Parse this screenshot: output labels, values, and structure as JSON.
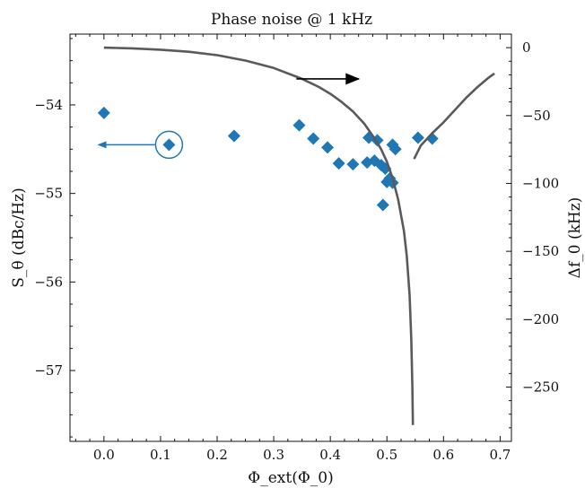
{
  "chart_data": {
    "type": "scatter",
    "title": "Phase noise @ 1 kHz",
    "xlabel": "Φ_ext(Φ_0)",
    "ylabel_left": "S_θ (dBc/Hz)",
    "ylabel_right": "Δf_0 (kHz)",
    "xlim": [
      -0.06,
      0.72
    ],
    "ylim_left": [
      -57.8,
      -53.2
    ],
    "ylim_right": [
      -290,
      10
    ],
    "x_ticks": [
      0.0,
      0.1,
      0.2,
      0.3,
      0.4,
      0.5,
      0.6,
      0.7
    ],
    "x_tick_labels": [
      "0.0",
      "0.1",
      "0.2",
      "0.3",
      "0.4",
      "0.5",
      "0.6",
      "0.7"
    ],
    "y_left_ticks": [
      -54,
      -55,
      -56,
      -57
    ],
    "y_left_tick_labels": [
      "−54",
      "−55",
      "−56",
      "−57"
    ],
    "y_right_ticks": [
      0,
      -50,
      -100,
      -150,
      -200,
      -250
    ],
    "y_right_tick_labels": [
      "0",
      "−50",
      "−100",
      "−150",
      "−200",
      "−250"
    ],
    "grid": false,
    "series": [
      {
        "axis": "left",
        "marker": "diamond",
        "color": "#1f77b4",
        "points": [
          [
            0.0,
            -54.09
          ],
          [
            0.115,
            -54.45
          ],
          [
            0.23,
            -54.35
          ],
          [
            0.345,
            -54.23
          ],
          [
            0.37,
            -54.38
          ],
          [
            0.395,
            -54.48
          ],
          [
            0.415,
            -54.66
          ],
          [
            0.44,
            -54.67
          ],
          [
            0.465,
            -54.65
          ],
          [
            0.468,
            -54.37
          ],
          [
            0.478,
            -54.63
          ],
          [
            0.483,
            -54.4
          ],
          [
            0.49,
            -54.68
          ],
          [
            0.493,
            -55.13
          ],
          [
            0.497,
            -54.72
          ],
          [
            0.5,
            -54.87
          ],
          [
            0.505,
            -54.83
          ],
          [
            0.51,
            -54.88
          ],
          [
            0.51,
            -54.45
          ],
          [
            0.515,
            -54.5
          ],
          [
            0.555,
            -54.37
          ],
          [
            0.58,
            -54.38
          ]
        ]
      },
      {
        "axis": "right",
        "color": "#5a5a5a",
        "points": [
          [
            0.0,
            0
          ],
          [
            0.05,
            -0.5
          ],
          [
            0.1,
            -1.5
          ],
          [
            0.15,
            -3
          ],
          [
            0.2,
            -5.5
          ],
          [
            0.25,
            -9.5
          ],
          [
            0.3,
            -15
          ],
          [
            0.35,
            -23
          ],
          [
            0.38,
            -29
          ],
          [
            0.4,
            -34
          ],
          [
            0.42,
            -40
          ],
          [
            0.44,
            -47
          ],
          [
            0.46,
            -56
          ],
          [
            0.48,
            -68
          ],
          [
            0.49,
            -75
          ],
          [
            0.5,
            -84
          ],
          [
            0.51,
            -96
          ],
          [
            0.52,
            -112
          ],
          [
            0.53,
            -135
          ],
          [
            0.535,
            -153
          ],
          [
            0.54,
            -182
          ],
          [
            0.543,
            -215
          ],
          [
            0.545,
            -250
          ],
          [
            0.546,
            -278
          ]
        ]
      },
      {
        "axis": "right",
        "color": "#5a5a5a",
        "points": [
          [
            0.548,
            -82
          ],
          [
            0.56,
            -72
          ],
          [
            0.58,
            -63
          ],
          [
            0.6,
            -55
          ],
          [
            0.62,
            -46
          ],
          [
            0.64,
            -37
          ],
          [
            0.66,
            -29
          ],
          [
            0.68,
            -22
          ],
          [
            0.69,
            -19
          ]
        ]
      }
    ],
    "annotations": {
      "left_arrow": {
        "from": [
          0.09,
          -54.45
        ],
        "to": [
          -0.01,
          -54.45
        ],
        "color": "#1f77b4"
      },
      "circle_highlight": {
        "center": [
          0.115,
          -54.45
        ],
        "color": "#1f77b4"
      },
      "right_arrow": {
        "from": [
          0.34,
          -23
        ],
        "to": [
          0.45,
          -23
        ],
        "color": "#000000"
      }
    }
  }
}
